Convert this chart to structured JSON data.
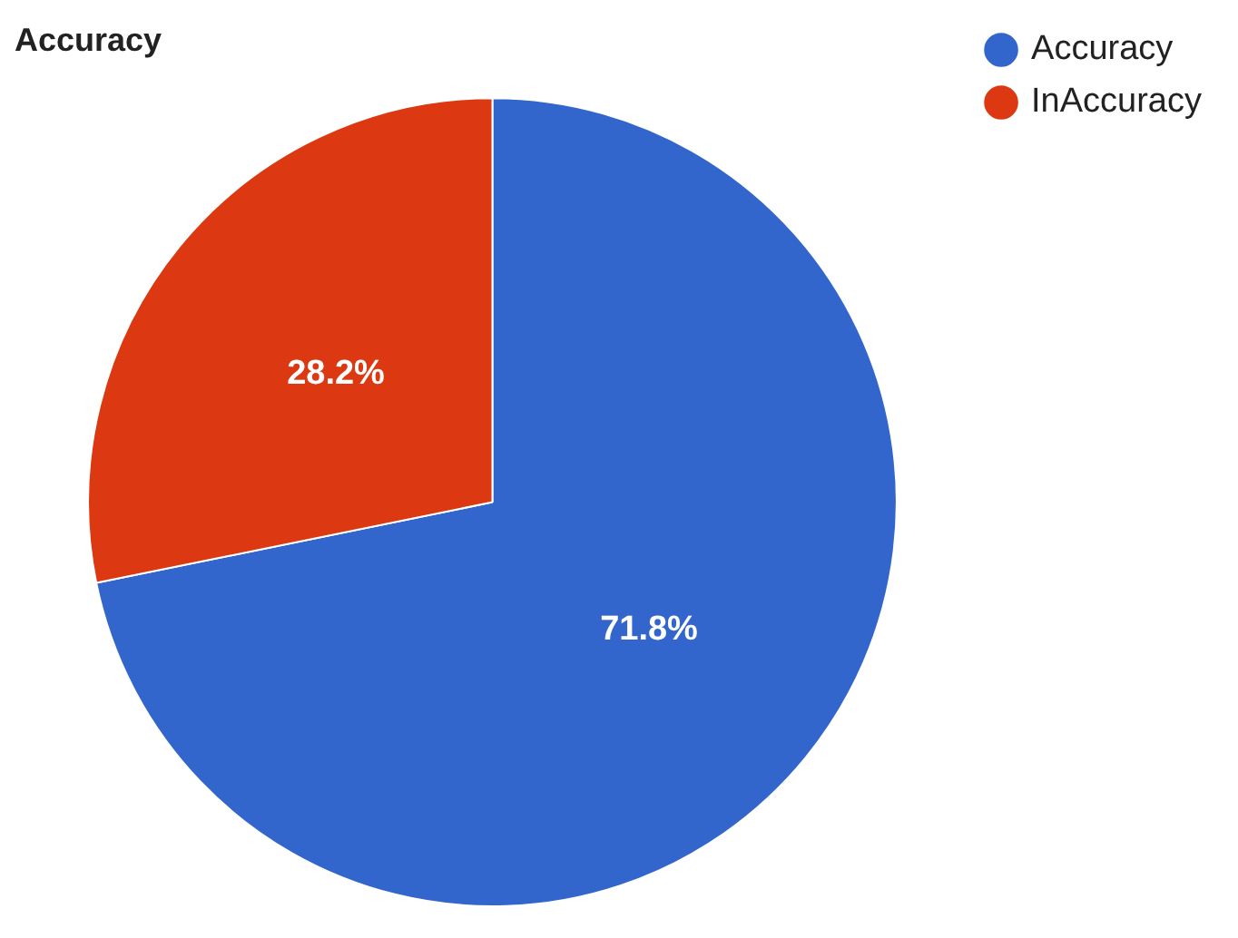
{
  "chart_data": {
    "type": "pie",
    "title": "Accuracy",
    "categories": [
      "Accuracy",
      "InAccuracy"
    ],
    "values": [
      71.8,
      28.2
    ],
    "colors": [
      "#3366cc",
      "#dc3912"
    ],
    "value_labels": [
      "71.8%",
      "28.2%"
    ],
    "legend": "top right"
  }
}
